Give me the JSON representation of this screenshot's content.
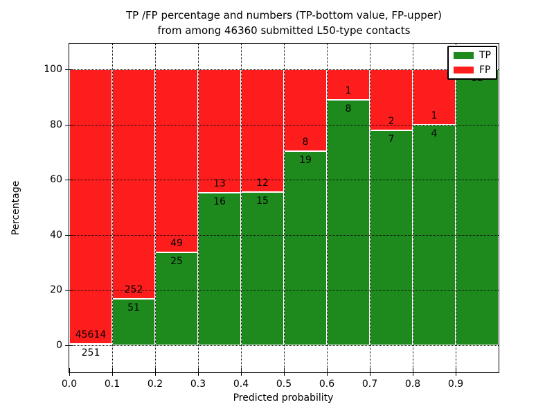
{
  "title": {
    "line1": "TP /FP percentage and numbers (TP-bottom value, FP-upper)",
    "line2": "from among 46360 submitted L50-type contacts"
  },
  "chart_data": {
    "type": "bar",
    "stacked": true,
    "normalization": "each bin scaled so TP%+FP% = 100; TP on bottom, FP on top",
    "bin_edges": [
      0.0,
      0.1,
      0.2,
      0.3,
      0.4,
      0.5,
      0.6,
      0.7,
      0.8,
      0.9,
      1.0
    ],
    "series": [
      {
        "name": "TP",
        "color": "#1e8a1e",
        "counts": [
          251,
          51,
          25,
          16,
          15,
          19,
          8,
          7,
          4,
          12
        ]
      },
      {
        "name": "FP",
        "color": "#fd1d1d",
        "counts": [
          45614,
          252,
          49,
          13,
          12,
          8,
          1,
          2,
          1,
          0
        ]
      }
    ],
    "tp_percentages": [
      0.55,
      16.83,
      33.78,
      55.17,
      55.56,
      70.37,
      88.89,
      77.78,
      80.0,
      100.0
    ],
    "title": "TP /FP percentage and numbers (TP-bottom value, FP-upper) from among 46360 submitted L50-type contacts",
    "xlabel": "Predicted probability",
    "ylabel": "Percentage",
    "xlim": [
      0,
      1
    ],
    "ylim": [
      -10,
      110
    ],
    "xticks": [
      "0.0",
      "0.1",
      "0.2",
      "0.3",
      "0.4",
      "0.5",
      "0.6",
      "0.7",
      "0.8",
      "0.9"
    ],
    "yticks": [
      0,
      20,
      40,
      60,
      80,
      100
    ],
    "grid": "dotted black",
    "legend_position": "upper right",
    "total_submitted": 46360
  },
  "colors": {
    "tp_green": "#1e8a1e",
    "fp_red": "#fd1d1d",
    "grid": "#000000",
    "frame": "#000000",
    "background": "#ffffff"
  }
}
